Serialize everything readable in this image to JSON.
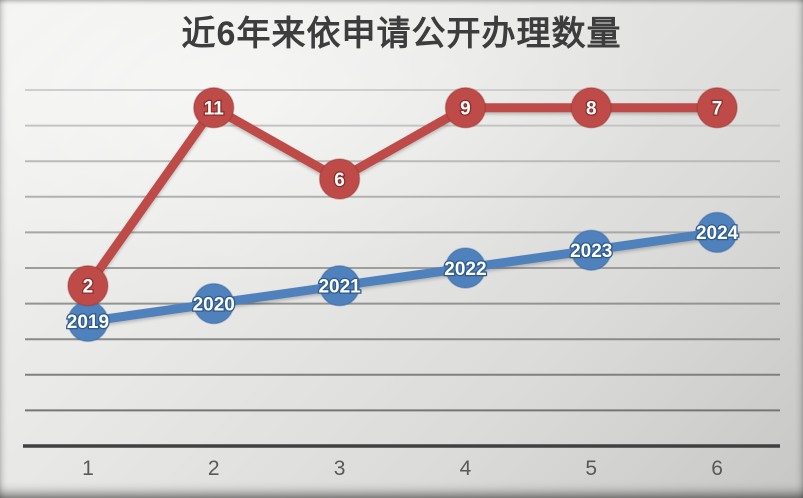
{
  "title": "近6年来依申请公开办理数量",
  "chart_data": {
    "type": "line",
    "title": "近6年来依申请公开办理数量",
    "categories": [
      "1",
      "2",
      "3",
      "4",
      "5",
      "6"
    ],
    "xlabel": "",
    "ylabel": "",
    "ylim": [
      0,
      10
    ],
    "gridline_step": 1,
    "gridline_count": 10,
    "grid": "horizontal",
    "legend_position": "none",
    "axis_color": "#404040",
    "tick_label_color": "#595959",
    "title_color": "#3d3d3d",
    "series": [
      {
        "id": "years-line",
        "name": "blue-year-series",
        "color": "#4f81bd",
        "color_dark": "#2e5a8f",
        "data_labels": [
          "2019",
          "2020",
          "2021",
          "2022",
          "2023",
          "2024"
        ],
        "plotted_values": [
          3.5,
          4.0,
          4.5,
          5.0,
          5.5,
          6.0
        ]
      },
      {
        "id": "counts-line",
        "name": "red-count-series",
        "color": "#be4b48",
        "color_dark": "#8c2e2c",
        "data_labels": [
          "2",
          "11",
          "6",
          "9",
          "8",
          "7"
        ],
        "plotted_values": [
          4.5,
          9.5,
          7.5,
          9.5,
          9.5,
          9.5
        ]
      }
    ]
  }
}
